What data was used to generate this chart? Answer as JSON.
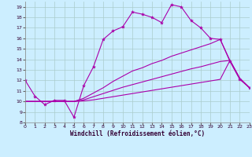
{
  "xlabel": "Windchill (Refroidissement éolien,°C)",
  "background_color": "#cceeff",
  "grid_color": "#aacccc",
  "line_color": "#aa00aa",
  "xlim": [
    0,
    23
  ],
  "ylim": [
    8,
    19.5
  ],
  "xticks": [
    0,
    1,
    2,
    3,
    4,
    5,
    6,
    7,
    8,
    9,
    10,
    11,
    12,
    13,
    14,
    15,
    16,
    17,
    18,
    19,
    20,
    21,
    22,
    23
  ],
  "yticks": [
    8,
    9,
    10,
    11,
    12,
    13,
    14,
    15,
    16,
    17,
    18,
    19
  ],
  "line1": {
    "x": [
      0,
      1,
      2,
      3,
      4,
      5,
      6,
      7,
      8,
      9,
      10,
      11,
      12,
      13,
      14,
      15,
      16,
      17,
      18,
      19,
      20,
      21,
      22,
      23
    ],
    "y": [
      12.0,
      10.5,
      9.7,
      10.1,
      10.1,
      8.5,
      11.5,
      13.3,
      15.9,
      16.7,
      17.1,
      18.5,
      18.3,
      18.0,
      17.5,
      19.2,
      19.0,
      17.7,
      17.0,
      16.0,
      15.9,
      13.8,
      12.1,
      11.3
    ]
  },
  "line2": {
    "x": [
      0,
      1,
      2,
      3,
      4,
      5,
      6,
      7,
      8,
      9,
      10,
      11,
      12,
      13,
      14,
      15,
      16,
      17,
      18,
      19,
      20,
      21,
      22,
      23
    ],
    "y": [
      10.0,
      10.0,
      10.0,
      10.0,
      10.0,
      10.0,
      10.3,
      10.8,
      11.3,
      11.9,
      12.4,
      12.9,
      13.2,
      13.6,
      13.9,
      14.3,
      14.6,
      14.9,
      15.2,
      15.5,
      15.9,
      13.9,
      12.2,
      11.3
    ]
  },
  "line3": {
    "x": [
      0,
      1,
      2,
      3,
      4,
      5,
      6,
      7,
      8,
      9,
      10,
      11,
      12,
      13,
      14,
      15,
      16,
      17,
      18,
      19,
      20,
      21,
      22,
      23
    ],
    "y": [
      10.0,
      10.0,
      10.0,
      10.0,
      10.0,
      10.0,
      10.15,
      10.45,
      10.75,
      11.05,
      11.35,
      11.6,
      11.85,
      12.1,
      12.35,
      12.6,
      12.85,
      13.1,
      13.3,
      13.55,
      13.8,
      13.9,
      12.2,
      11.3
    ]
  },
  "line4": {
    "x": [
      0,
      1,
      2,
      3,
      4,
      5,
      6,
      7,
      8,
      9,
      10,
      11,
      12,
      13,
      14,
      15,
      16,
      17,
      18,
      19,
      20,
      21,
      22,
      23
    ],
    "y": [
      10.0,
      10.0,
      10.0,
      10.0,
      10.0,
      10.0,
      10.05,
      10.15,
      10.3,
      10.45,
      10.6,
      10.75,
      10.9,
      11.05,
      11.2,
      11.35,
      11.5,
      11.65,
      11.8,
      11.95,
      12.1,
      13.9,
      12.2,
      11.3
    ]
  }
}
